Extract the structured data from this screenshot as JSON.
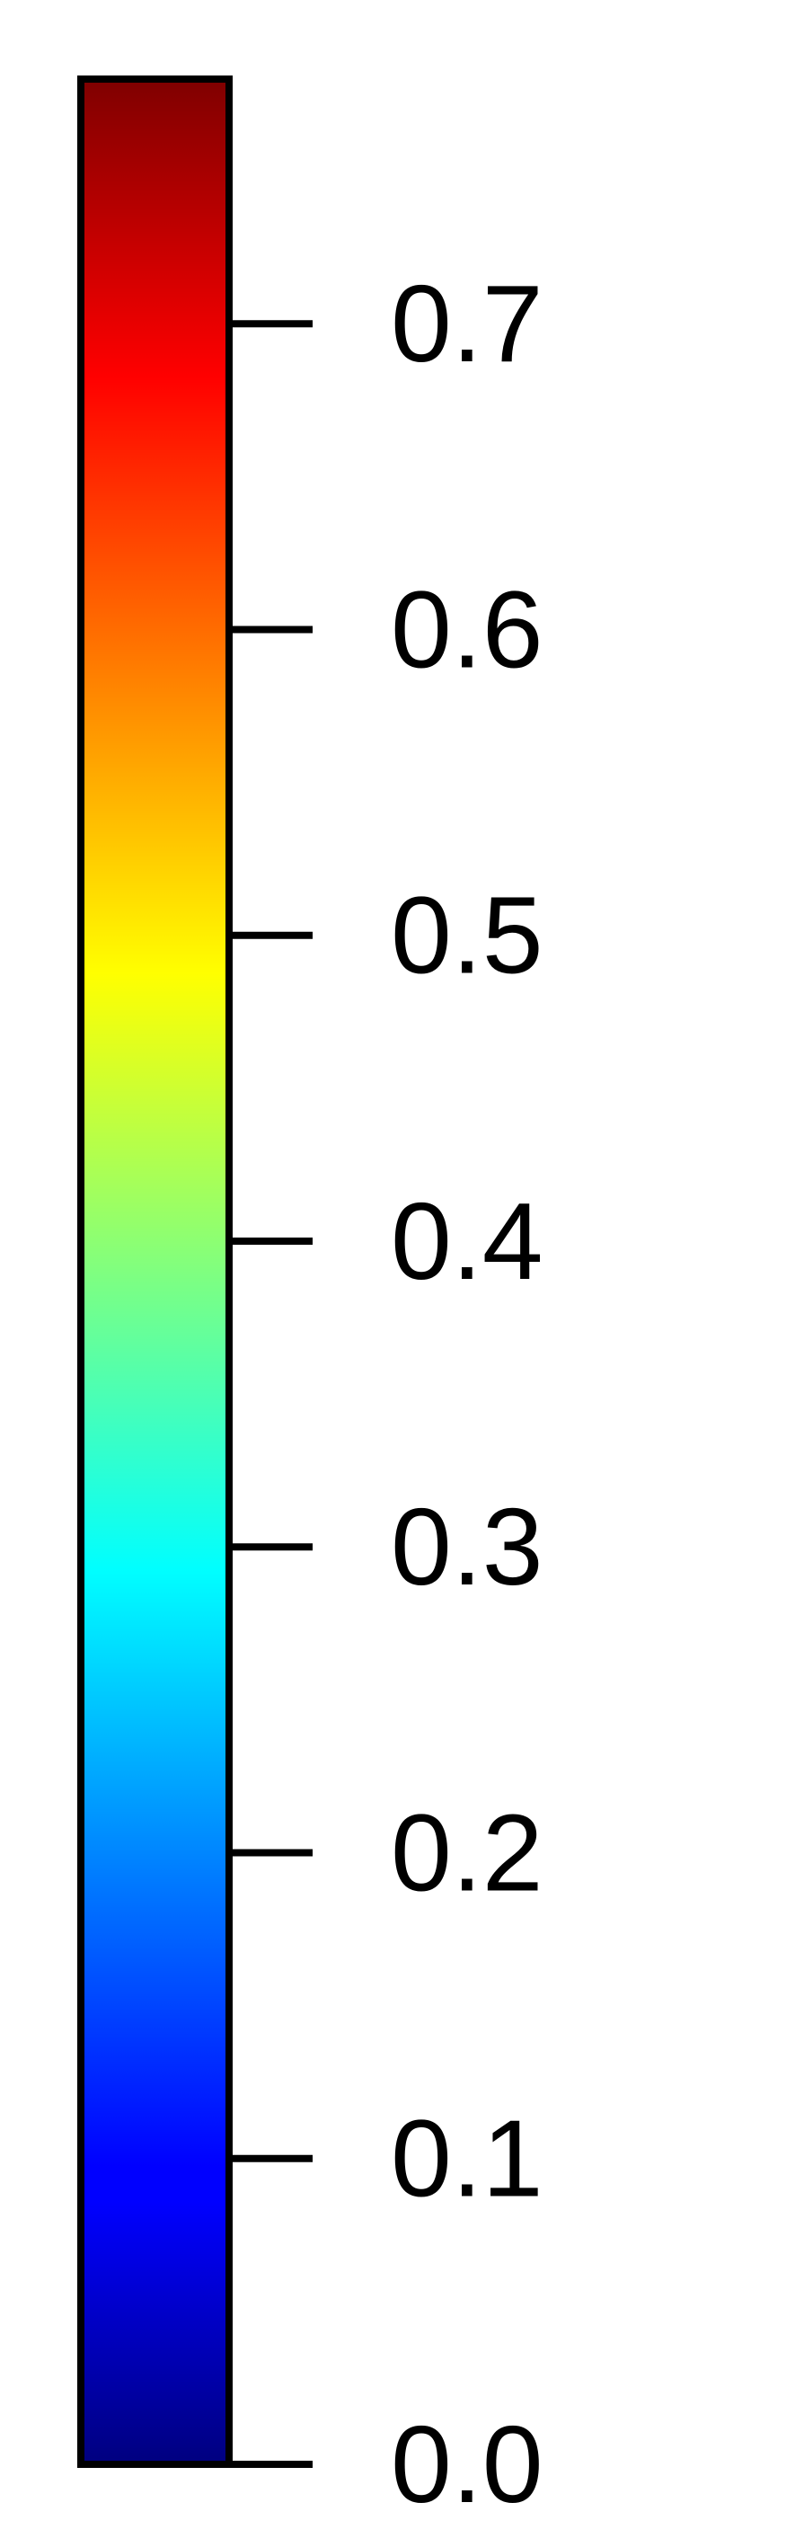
{
  "chart_data": {
    "type": "heatmap",
    "element": "colorbar",
    "orientation": "vertical",
    "colormap": "jet",
    "range": [
      0.0,
      0.78
    ],
    "ticks": [
      0.0,
      0.1,
      0.2,
      0.3,
      0.4,
      0.5,
      0.6,
      0.7
    ],
    "tick_labels": [
      "0.0",
      "0.1",
      "0.2",
      "0.3",
      "0.4",
      "0.5",
      "0.6",
      "0.7"
    ],
    "colors": {
      "min": "#00007f",
      "blue": "#0000ff",
      "cyan": "#00ffff",
      "yellow": "#ffff00",
      "red": "#ff0000",
      "max": "#7f0000",
      "outline": "#000000"
    }
  }
}
